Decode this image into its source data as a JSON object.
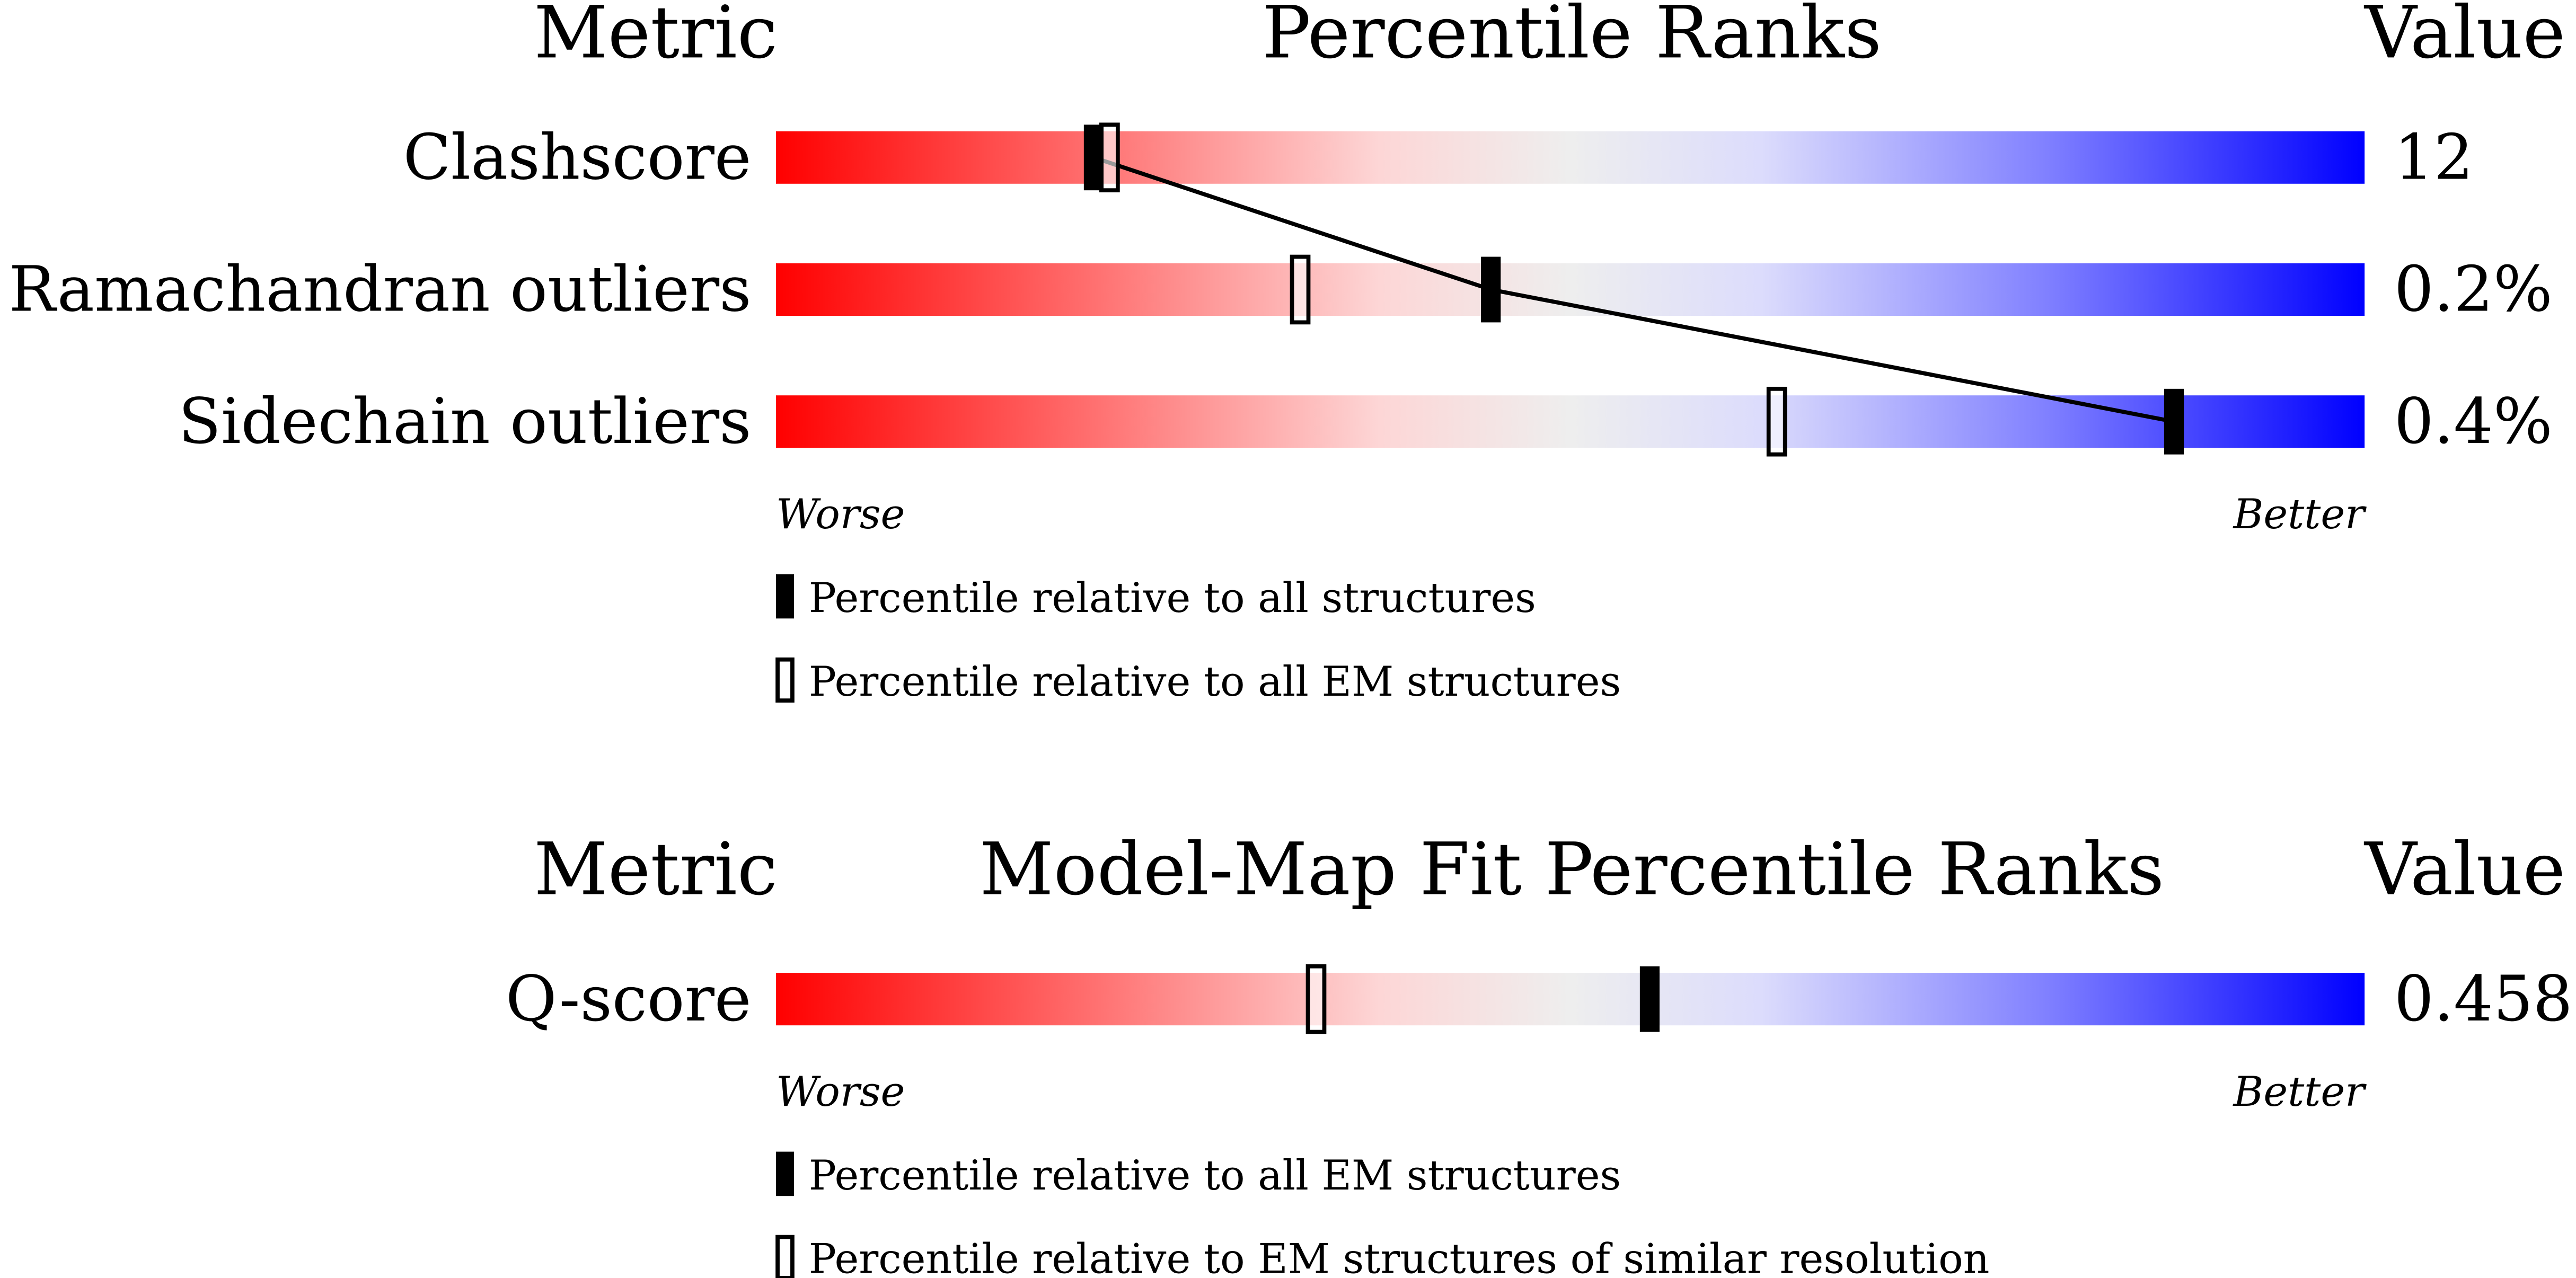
{
  "chart_data": [
    {
      "type": "percentile-slider",
      "headers": {
        "metric": "Metric",
        "ranks": "Percentile Ranks",
        "value": "Value"
      },
      "xlim": [
        0,
        100
      ],
      "axis_labels": {
        "worse": "Worse",
        "better": "Better"
      },
      "categories": [
        "Clashscore",
        "Ramachandran outliers",
        "Sidechain outliers"
      ],
      "value_labels": [
        "12",
        "0.2%",
        "0.4%"
      ],
      "series": [
        {
          "name": "Percentile relative to all structures",
          "style": "filled",
          "connected": true,
          "values": [
            20,
            45,
            88
          ]
        },
        {
          "name": "Percentile relative to all EM structures",
          "style": "open",
          "connected": false,
          "values": [
            21,
            33,
            63
          ]
        }
      ]
    },
    {
      "type": "percentile-slider",
      "headers": {
        "metric": "Metric",
        "ranks": "Model-Map Fit Percentile Ranks",
        "value": "Value"
      },
      "xlim": [
        0,
        100
      ],
      "axis_labels": {
        "worse": "Worse",
        "better": "Better"
      },
      "categories": [
        "Q-score"
      ],
      "value_labels": [
        "0.458"
      ],
      "series": [
        {
          "name": "Percentile relative to all EM structures",
          "style": "filled",
          "connected": false,
          "values": [
            55
          ]
        },
        {
          "name": "Percentile relative to EM structures of similar resolution",
          "style": "open",
          "connected": false,
          "values": [
            34
          ]
        }
      ]
    }
  ]
}
